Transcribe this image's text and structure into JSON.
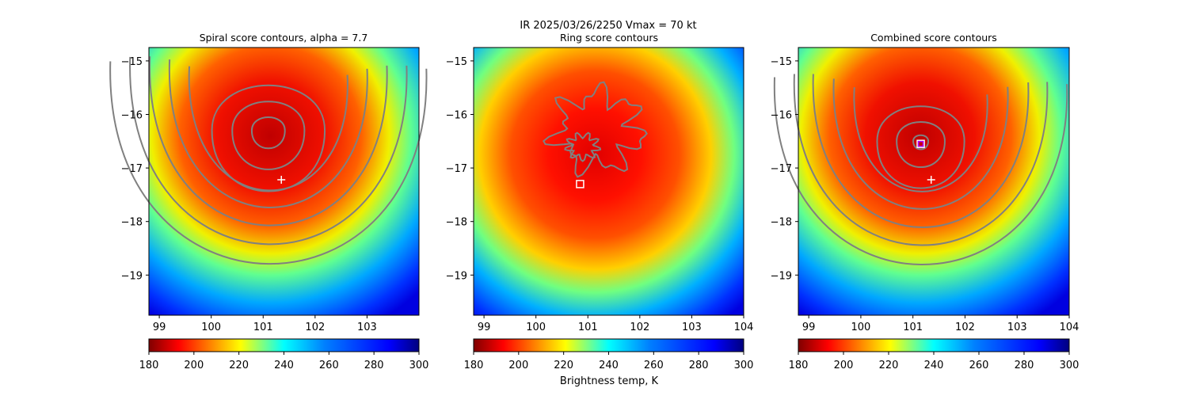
{
  "suptitle_line1": "IR  2025/03/26/2250    Vmax = 70 kt",
  "colorbar_label": "Brightness temp, K",
  "colormap": "jet_r",
  "chart_data": [
    {
      "type": "heatmap",
      "title": "Spiral score contours, alpha =  7.7",
      "xlabel": "",
      "ylabel": "",
      "xlim": [
        98.8,
        104.0
      ],
      "ylim": [
        -19.75,
        -14.75
      ],
      "xticks": [
        "99",
        "100",
        "101",
        "102",
        "103"
      ],
      "yticks": [
        "−15",
        "−16",
        "−17",
        "−18",
        "−19"
      ],
      "colorbar": {
        "min": 180,
        "max": 300,
        "ticks": [
          "180",
          "200",
          "220",
          "240",
          "260",
          "280",
          "300"
        ]
      },
      "marker_center": {
        "x": 101.35,
        "y": -17.22,
        "symbol": "+"
      },
      "contour_center": {
        "x": 101.1,
        "y": -16.3
      },
      "contour_color": "#808080"
    },
    {
      "type": "heatmap",
      "title": "Ring score contours",
      "xlabel": "",
      "ylabel": "",
      "xlim": [
        98.8,
        104.0
      ],
      "ylim": [
        -19.75,
        -14.75
      ],
      "xticks": [
        "99",
        "100",
        "101",
        "102",
        "103",
        "104"
      ],
      "yticks": [
        "−15",
        "−16",
        "−17",
        "−18",
        "−19"
      ],
      "colorbar": {
        "min": 180,
        "max": 300,
        "ticks": [
          "180",
          "200",
          "220",
          "240",
          "260",
          "280",
          "300"
        ]
      },
      "marker_center": {
        "x": 100.85,
        "y": -17.3,
        "symbol": "square"
      },
      "contour_color": "#808080"
    },
    {
      "type": "heatmap",
      "title": "Combined score contours",
      "xlabel": "",
      "ylabel": "",
      "xlim": [
        98.8,
        104.0
      ],
      "ylim": [
        -19.75,
        -14.75
      ],
      "xticks": [
        "99",
        "100",
        "101",
        "102",
        "103",
        "104"
      ],
      "yticks": [
        "−15",
        "−16",
        "−17",
        "−18",
        "−19"
      ],
      "colorbar": {
        "min": 180,
        "max": 300,
        "ticks": [
          "180",
          "200",
          "220",
          "240",
          "260",
          "280",
          "300"
        ]
      },
      "marker_center": {
        "x": 101.35,
        "y": -17.22,
        "symbol": "+"
      },
      "marker_best": {
        "x": 101.15,
        "y": -16.55,
        "symbol": "square"
      },
      "contour_center": {
        "x": 101.15,
        "y": -16.5
      },
      "contour_color": "#808080"
    }
  ]
}
